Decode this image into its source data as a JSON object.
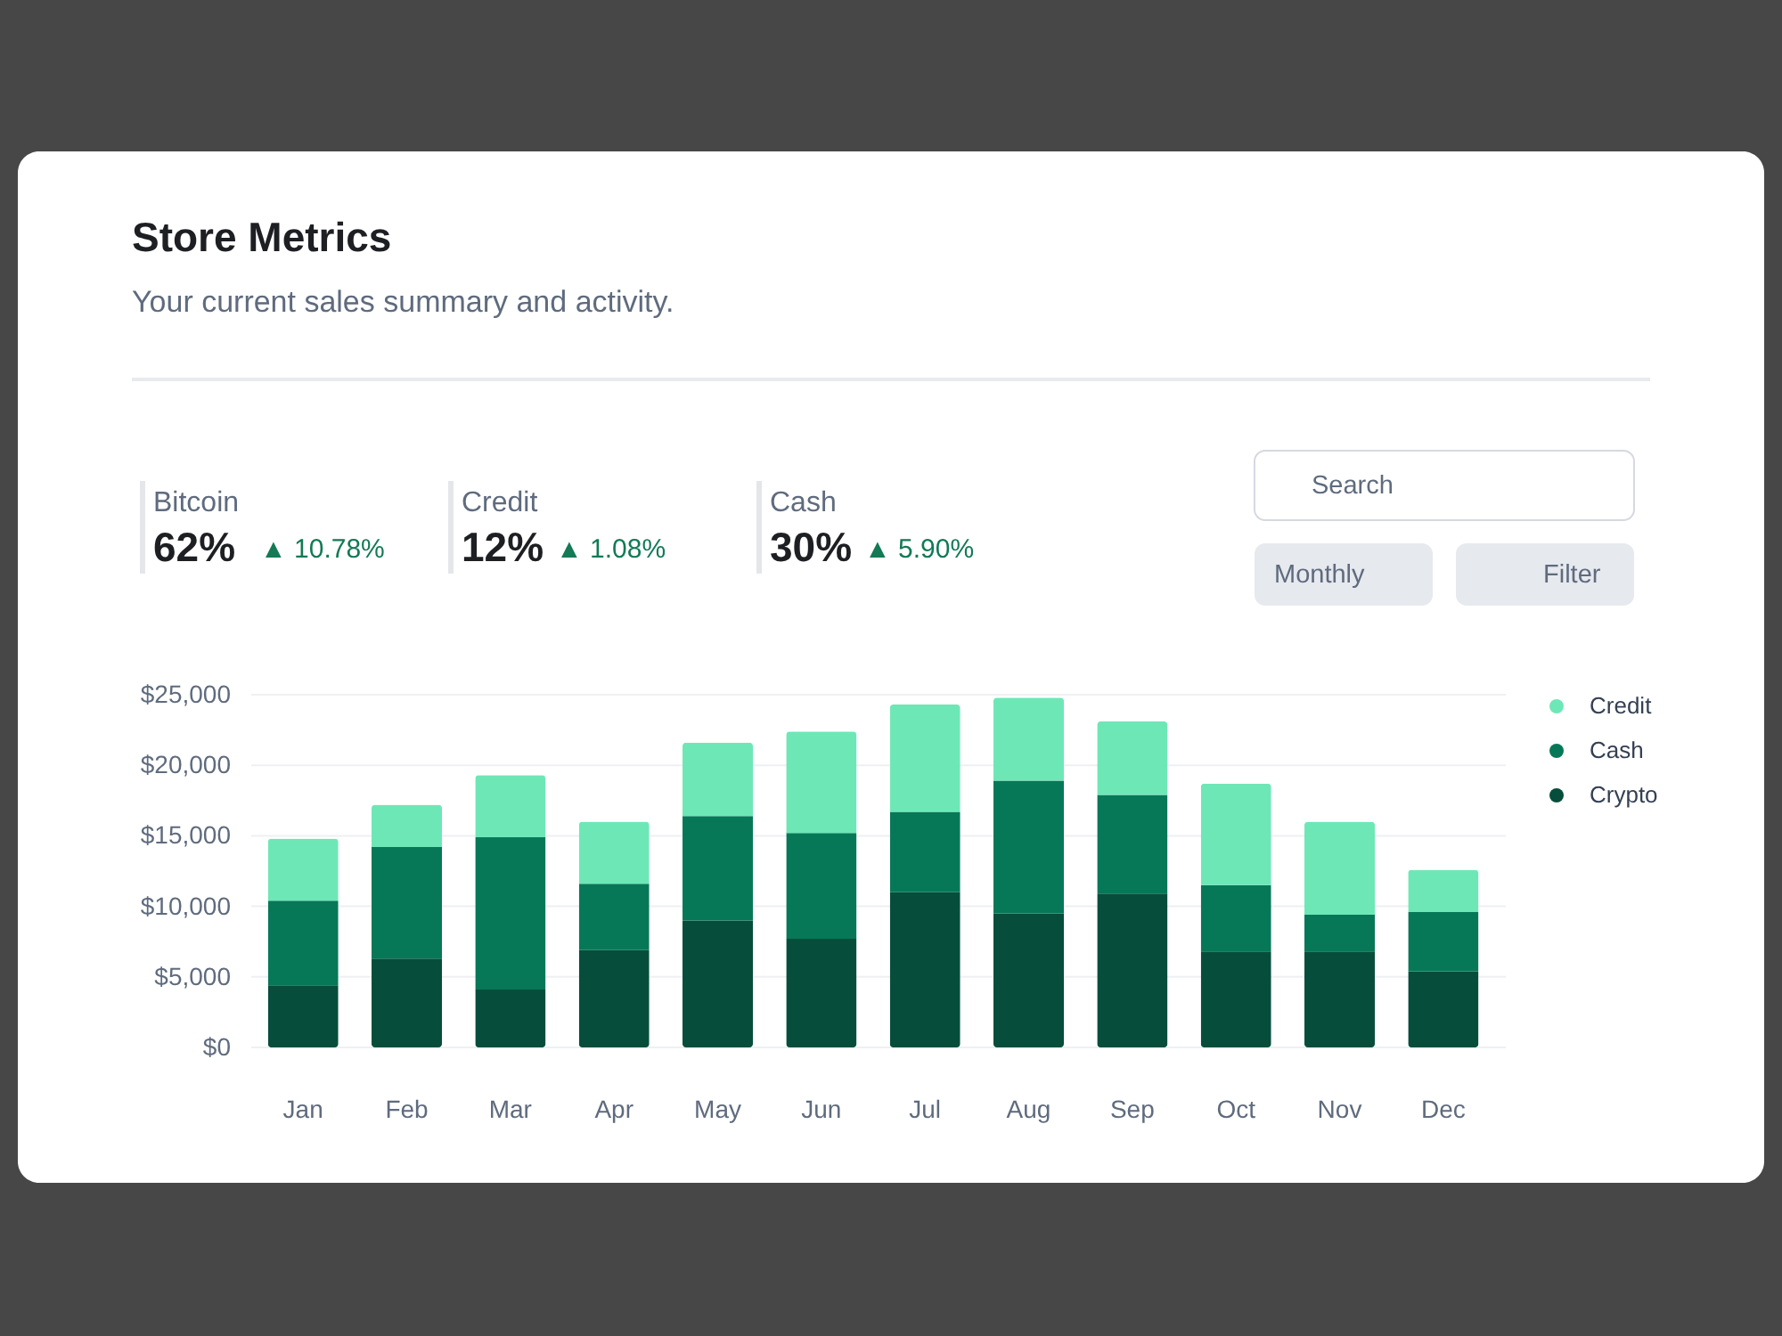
{
  "chart_data": {
    "type": "bar",
    "title": "Store Metrics",
    "subtitle": "Your current sales summary and activity.",
    "annotations": [
      "Bitcoin",
      "62%",
      "▲ 10.78%",
      "Credit",
      "12%",
      "▲ 1.08%",
      "Cash",
      "30%",
      "▲ 5.90%",
      "Search",
      "Monthly",
      "Filter"
    ],
    "categories": [
      "Jan",
      "Feb",
      "Mar",
      "Apr",
      "May",
      "Jun",
      "Jul",
      "Aug",
      "Sep",
      "Oct",
      "Nov",
      "Dec"
    ],
    "stacked": true,
    "series": [
      {
        "name": "Crypto",
        "color": "#064e3b",
        "values": [
          4400,
          6300,
          4100,
          6900,
          9000,
          7700,
          11000,
          9500,
          10900,
          6800,
          6800,
          5400
        ]
      },
      {
        "name": "Cash",
        "color": "#077857",
        "values": [
          6000,
          7900,
          10800,
          4700,
          7400,
          7500,
          5700,
          9400,
          7000,
          4700,
          2600,
          4200
        ]
      },
      {
        "name": "Credit",
        "color": "#6ee7b7",
        "values": [
          4400,
          3000,
          4400,
          4400,
          5200,
          7200,
          7600,
          5900,
          5200,
          7200,
          6600,
          3000
        ]
      }
    ],
    "ylim": [
      0,
      25000
    ],
    "yticks": [
      {
        "value": 0,
        "label": "$0"
      },
      {
        "value": 5000,
        "label": "$5,000"
      },
      {
        "value": 10000,
        "label": "$10,000"
      },
      {
        "value": 15000,
        "label": "$15,000"
      },
      {
        "value": 20000,
        "label": "$20,000"
      },
      {
        "value": 25000,
        "label": "$25,000"
      }
    ],
    "grid": "y",
    "legend": "top right"
  }
}
